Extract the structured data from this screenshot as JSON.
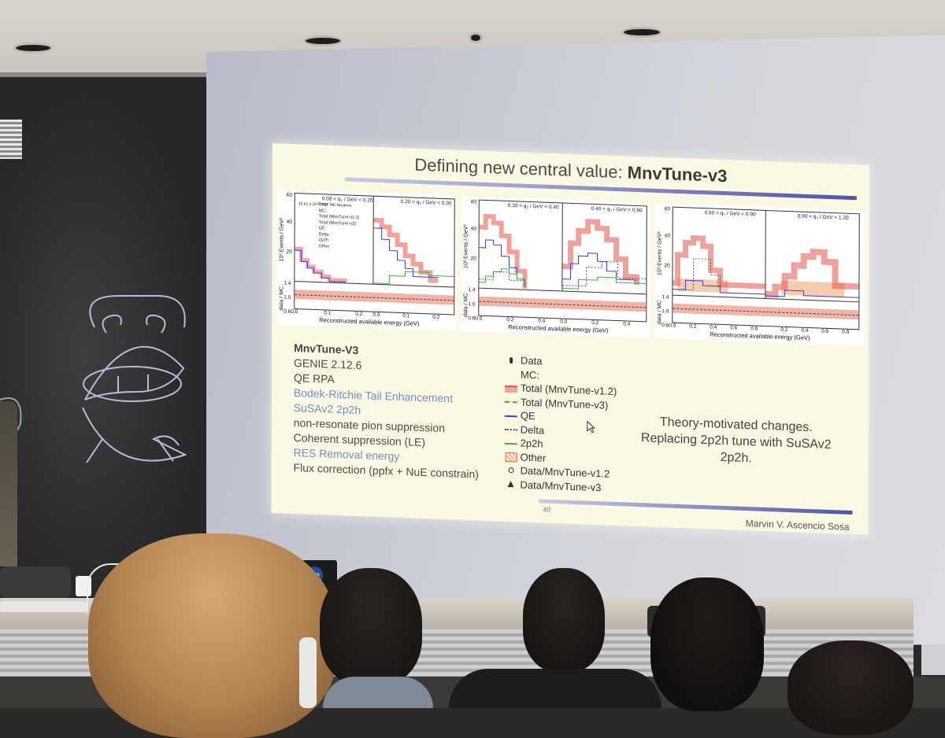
{
  "slide": {
    "title_plain": "Defining new central value: ",
    "title_bold": "MnvTune-v3",
    "panels": [
      {
        "bins": [
          "0.00 < q₃ / GeV < 0.20",
          "0.20 < q₃ / GeV < 0.30"
        ],
        "pot_label": "10.61 x 10²⁰ POT ME Neutrino",
        "legend": [
          "Data",
          "MC:",
          "Total (MnvTune-v1.2)",
          "Total (MnvTune-v3)",
          "QE",
          "Delta",
          "2p2h",
          "Other"
        ],
        "y_label": "10³ Events / GeV²",
        "ratio_label": "data / MC",
        "x_label": "Reconstructed available energy (GeV)",
        "y_ticks": [
          "60",
          "40",
          "20"
        ],
        "ratio_ticks": [
          "1.4",
          "1.2",
          "1.0",
          "0.8",
          "0.6"
        ],
        "x_ticks": [
          "0.0",
          "0.1",
          "0.2",
          "0.0",
          "0.1",
          "0.2"
        ]
      },
      {
        "bins": [
          "0.30 < q₃ / GeV < 0.40",
          "0.40 < q₃ / GeV < 0.60"
        ],
        "y_label": "10³ Events / GeV²",
        "ratio_label": "data / MC",
        "x_label": "Reconstructed available energy (GeV)",
        "y_ticks": [
          "60",
          "40",
          "20"
        ],
        "ratio_ticks": [
          "1.4",
          "1.2",
          "1.0",
          "0.8",
          "0.6"
        ],
        "x_ticks": [
          "0.0",
          "0.2",
          "0.4",
          "0.0",
          "0.2",
          "0.4"
        ]
      },
      {
        "bins": [
          "0.60 < q₃ / GeV < 0.90",
          "0.90 < q₃ / GeV < 1.20"
        ],
        "y_label": "10³ Events / GeV²",
        "ratio_label": "data / MC",
        "x_label": "Reconstructed available energy (GeV)",
        "y_ticks": [
          "60",
          "40",
          "20"
        ],
        "ratio_ticks": [
          "1.4",
          "1.2",
          "1.0",
          "0.8",
          "0.6"
        ],
        "x_ticks": [
          "0.0",
          "0.2",
          "0.4",
          "0.6",
          "0.8",
          "0.2",
          "0.4",
          "0.6",
          "0.8"
        ]
      }
    ],
    "left_list": {
      "header": "MnvTune-V3",
      "items": [
        {
          "text": "GENIE 2.12.6",
          "color": "#4a4a4a"
        },
        {
          "text": "QE RPA",
          "color": "#4a4a4a"
        },
        {
          "text": "Bodek-Ritchie Tail Enhancement",
          "color": "#6f8fc4"
        },
        {
          "text": "SuSAv2 2p2h",
          "color": "#6f8fc4"
        },
        {
          "text": "non-resonate pion suppression",
          "color": "#4a4a4a"
        },
        {
          "text": "Coherent suppression (LE)",
          "color": "#4a4a4a"
        },
        {
          "text": "RES Removal energy",
          "color": "#6f8fc4"
        },
        {
          "text": "Flux correction (ppfx + NuE constrain)",
          "color": "#4a4a4a"
        }
      ]
    },
    "legend": [
      {
        "symbol": "data-point",
        "text": "Data"
      },
      {
        "symbol": "none",
        "text": "MC:"
      },
      {
        "symbol": "red-band",
        "text": "Total (MnvTune-v1.2)"
      },
      {
        "symbol": "red-dashed",
        "text": "Total (MnvTune-v3)"
      },
      {
        "symbol": "blue-line",
        "text": "QE"
      },
      {
        "symbol": "dotted",
        "text": "Delta"
      },
      {
        "symbol": "green-line",
        "text": "2p2h"
      },
      {
        "symbol": "hatched",
        "text": "Other"
      },
      {
        "symbol": "open-point",
        "text": "Data/MnvTune-v1.2"
      },
      {
        "symbol": "filled-triangle",
        "text": "Data/MnvTune-v3"
      }
    ],
    "note_lines": [
      "Theory-motivated changes.",
      "Replacing 2p2h tune with SuSAv2",
      "2p2h."
    ],
    "page_number": "40",
    "author": "Marvin V. Ascencio Sosa"
  },
  "laptop_logo": "NASA",
  "colors": {
    "slide_bg": "#fbf9e4",
    "accent_bar": "#4f55a8",
    "total_v12": "#e5534b",
    "qe": "#3b3fd1",
    "two_p_two_h": "#4aa84a",
    "other_fill": "#f2b78f"
  }
}
